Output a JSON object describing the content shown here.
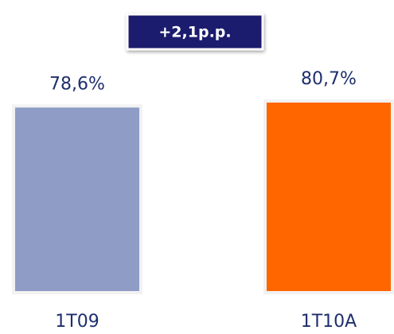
{
  "chart_data": {
    "type": "bar",
    "annotation": "+2,1p.p.",
    "categories": [
      "1T09",
      "1T10A"
    ],
    "values": [
      78.6,
      80.7
    ],
    "value_labels": [
      "78,6%",
      "80,7%"
    ],
    "colors": [
      "#8e9cc6",
      "#ff6600"
    ]
  }
}
